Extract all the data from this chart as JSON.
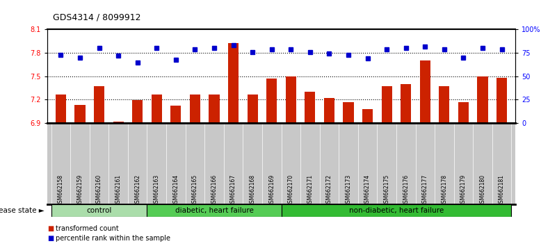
{
  "title": "GDS4314 / 8099912",
  "samples": [
    "GSM662158",
    "GSM662159",
    "GSM662160",
    "GSM662161",
    "GSM662162",
    "GSM662163",
    "GSM662164",
    "GSM662165",
    "GSM662166",
    "GSM662167",
    "GSM662168",
    "GSM662169",
    "GSM662170",
    "GSM662171",
    "GSM662172",
    "GSM662173",
    "GSM662174",
    "GSM662175",
    "GSM662176",
    "GSM662177",
    "GSM662178",
    "GSM662179",
    "GSM662180",
    "GSM662181"
  ],
  "bar_values": [
    7.27,
    7.13,
    7.37,
    6.92,
    7.19,
    7.27,
    7.12,
    7.27,
    7.27,
    7.93,
    7.27,
    7.47,
    7.5,
    7.3,
    7.22,
    7.17,
    7.08,
    7.37,
    7.4,
    7.7,
    7.37,
    7.17,
    7.5,
    7.48
  ],
  "percentile_values": [
    73,
    70,
    80,
    72,
    65,
    80,
    68,
    79,
    80,
    83,
    76,
    79,
    79,
    76,
    74,
    73,
    69,
    79,
    80,
    82,
    79,
    70,
    80,
    79
  ],
  "ylim_left": [
    6.9,
    8.1
  ],
  "yticks_left": [
    6.9,
    7.2,
    7.5,
    7.8,
    8.1
  ],
  "ytick_labels_left": [
    "6.9",
    "7.2",
    "7.5",
    "7.8",
    "8.1"
  ],
  "yticks_right": [
    0,
    25,
    50,
    75,
    100
  ],
  "ytick_labels_right": [
    "0",
    "25",
    "50",
    "75",
    "100%"
  ],
  "hlines": [
    7.2,
    7.5,
    7.8
  ],
  "bar_color": "#cc2200",
  "dot_color": "#0000cc",
  "xticklabel_bg": "#c8c8c8",
  "groups": [
    {
      "label": "control",
      "start": 0,
      "end": 4,
      "color": "#aaddaa"
    },
    {
      "label": "diabetic, heart failure",
      "start": 5,
      "end": 11,
      "color": "#55cc55"
    },
    {
      "label": "non-diabetic, heart failure",
      "start": 12,
      "end": 23,
      "color": "#33bb33"
    }
  ],
  "disease_state_label": "disease state",
  "legend_bar_label": "transformed count",
  "legend_dot_label": "percentile rank within the sample"
}
